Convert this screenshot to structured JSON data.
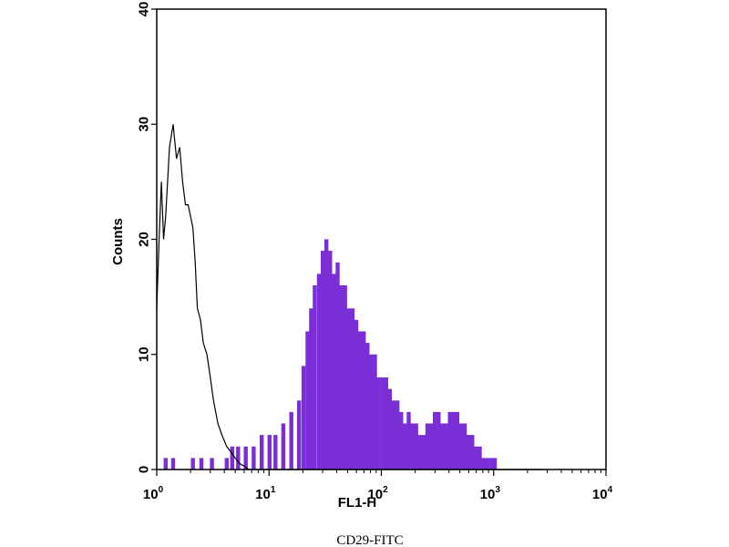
{
  "chart_data": {
    "type": "area",
    "title": "",
    "xlabel": "FL1-H",
    "ylabel": "Counts",
    "caption": "CD29-FITC",
    "x_scale": "log",
    "xlim": [
      1,
      10000
    ],
    "ylim": [
      0,
      40
    ],
    "x_ticks": [
      {
        "value": 1,
        "base": "10",
        "exp": "0"
      },
      {
        "value": 10,
        "base": "10",
        "exp": "1"
      },
      {
        "value": 100,
        "base": "10",
        "exp": "2"
      },
      {
        "value": 1000,
        "base": "10",
        "exp": "3"
      },
      {
        "value": 10000,
        "base": "10",
        "exp": "4"
      }
    ],
    "y_ticks": [
      0,
      10,
      20,
      30,
      40
    ],
    "grid": false,
    "legend": "none",
    "series": [
      {
        "style": "filled",
        "color": "#7a2fd6",
        "x": [
          1.2,
          1.4,
          1.6,
          1.8,
          2.1,
          2.5,
          3.1,
          3.6,
          4.2,
          4.7,
          5.3,
          6.2,
          7.3,
          8.6,
          10.1,
          11.4,
          13.4,
          15.8,
          18.5,
          20.3,
          22.0,
          23.7,
          25.5,
          27.8,
          30.1,
          32.4,
          35.0,
          37.7,
          40.8,
          44.0,
          47.5,
          51.3,
          55.4,
          59.8,
          64.6,
          69.7,
          75.3,
          81.3,
          87.8,
          94.8,
          102.4,
          110.5,
          119.3,
          128.9,
          139.1,
          150.2,
          162.1,
          175.0,
          189.0,
          204.1,
          220.4,
          238.0,
          257.0,
          277.5,
          299.6,
          323.5,
          349.3,
          377.1,
          407.2,
          439.7,
          474.8,
          512.6,
          553.5,
          597.7,
          645.4,
          696.8,
          752.5,
          812.5,
          877.3,
          947.3,
          1022.9,
          1104.5
        ],
        "y": [
          1,
          1,
          0,
          0,
          1,
          1,
          1,
          0,
          1,
          2,
          2,
          2,
          2,
          3,
          3,
          3,
          4,
          5,
          6,
          9,
          12,
          14,
          16,
          17,
          19,
          20,
          19,
          17,
          18,
          16,
          16,
          14,
          14,
          13,
          12,
          12,
          11,
          10,
          10,
          8,
          8,
          8,
          7,
          6,
          6,
          5,
          4,
          5,
          4,
          4,
          3,
          3,
          4,
          4,
          5,
          5,
          4,
          4,
          5,
          5,
          5,
          4,
          4,
          3,
          3,
          2,
          2,
          1,
          1,
          1,
          1,
          0
        ]
      },
      {
        "style": "outline",
        "color": "#000000",
        "x": [
          1.0,
          1.05,
          1.1,
          1.15,
          1.2,
          1.3,
          1.4,
          1.5,
          1.6,
          1.7,
          1.8,
          1.9,
          2.0,
          2.1,
          2.2,
          2.3,
          2.45,
          2.6,
          2.8,
          3.0,
          3.2,
          3.5,
          3.8,
          4.2,
          4.6,
          5.0,
          5.5,
          6.0,
          6.6,
          7.2,
          8.0,
          9.0,
          10.0,
          20.0,
          22.0,
          33.0,
          45.0,
          2800.0
        ],
        "y": [
          14,
          20,
          25,
          20,
          22,
          28,
          30,
          27,
          28,
          25,
          23,
          23,
          22,
          21,
          18,
          14,
          13,
          11,
          10,
          8,
          6,
          4,
          3,
          2,
          1.5,
          1,
          0.5,
          0.3,
          0,
          0,
          0,
          0,
          0,
          0,
          0,
          0,
          0,
          0
        ]
      }
    ]
  }
}
